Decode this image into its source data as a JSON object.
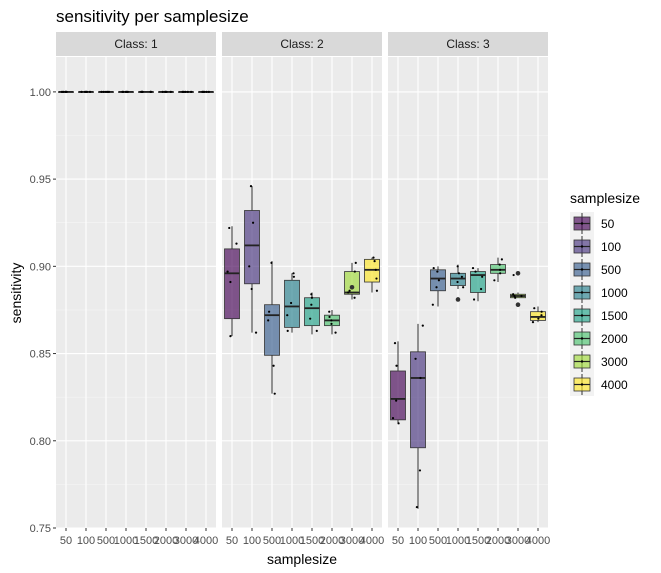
{
  "chart_data": {
    "type": "boxplot",
    "title": "sensitivity per samplesize",
    "xlabel": "samplesize",
    "ylabel": "sensitivity",
    "ylim": [
      0.75,
      1.02
    ],
    "yticks": [
      "0.75",
      "0.80",
      "0.85",
      "0.90",
      "0.95",
      "1.00"
    ],
    "categories": [
      "50",
      "100",
      "500",
      "1000",
      "1500",
      "2000",
      "3000",
      "4000"
    ],
    "facets": [
      "Class: 1",
      "Class: 2",
      "Class: 3"
    ],
    "legend": {
      "title": "samplesize",
      "position": "right",
      "entries": [
        "50",
        "100",
        "500",
        "1000",
        "1500",
        "2000",
        "3000",
        "4000"
      ]
    },
    "colors": [
      "#440154",
      "#46337E",
      "#365C8D",
      "#277F8E",
      "#1FA187",
      "#4AC16D",
      "#A0DA39",
      "#FDE725"
    ],
    "grid": true,
    "panels": [
      {
        "facet": "Class: 1",
        "boxes": [
          {
            "q1": 1.0,
            "med": 1.0,
            "q3": 1.0,
            "lo": 1.0,
            "hi": 1.0,
            "outliers": [],
            "points": [
              1.0,
              1.0,
              1.0,
              1.0,
              1.0
            ]
          },
          {
            "q1": 1.0,
            "med": 1.0,
            "q3": 1.0,
            "lo": 1.0,
            "hi": 1.0,
            "outliers": [],
            "points": [
              1.0,
              1.0,
              1.0,
              1.0,
              1.0
            ]
          },
          {
            "q1": 1.0,
            "med": 1.0,
            "q3": 1.0,
            "lo": 1.0,
            "hi": 1.0,
            "outliers": [],
            "points": [
              1.0,
              1.0,
              1.0,
              1.0,
              1.0
            ]
          },
          {
            "q1": 1.0,
            "med": 1.0,
            "q3": 1.0,
            "lo": 1.0,
            "hi": 1.0,
            "outliers": [],
            "points": [
              1.0,
              1.0,
              1.0,
              1.0,
              1.0
            ]
          },
          {
            "q1": 1.0,
            "med": 1.0,
            "q3": 1.0,
            "lo": 1.0,
            "hi": 1.0,
            "outliers": [],
            "points": [
              1.0,
              1.0,
              1.0,
              1.0,
              1.0
            ]
          },
          {
            "q1": 1.0,
            "med": 1.0,
            "q3": 1.0,
            "lo": 1.0,
            "hi": 1.0,
            "outliers": [],
            "points": [
              1.0,
              1.0,
              1.0,
              1.0,
              1.0
            ]
          },
          {
            "q1": 1.0,
            "med": 1.0,
            "q3": 1.0,
            "lo": 1.0,
            "hi": 1.0,
            "outliers": [],
            "points": [
              1.0,
              1.0,
              1.0,
              1.0,
              1.0
            ]
          },
          {
            "q1": 1.0,
            "med": 1.0,
            "q3": 1.0,
            "lo": 1.0,
            "hi": 1.0,
            "outliers": [],
            "points": [
              1.0,
              1.0,
              1.0,
              1.0,
              1.0
            ]
          }
        ]
      },
      {
        "facet": "Class: 2",
        "boxes": [
          {
            "q1": 0.87,
            "med": 0.896,
            "q3": 0.91,
            "lo": 0.86,
            "hi": 0.923,
            "outliers": [],
            "points": [
              0.86,
              0.891,
              0.897,
              0.913,
              0.922
            ]
          },
          {
            "q1": 0.89,
            "med": 0.912,
            "q3": 0.932,
            "lo": 0.862,
            "hi": 0.946,
            "outliers": [],
            "points": [
              0.862,
              0.887,
              0.9,
              0.925,
              0.946
            ]
          },
          {
            "q1": 0.849,
            "med": 0.872,
            "q3": 0.878,
            "lo": 0.827,
            "hi": 0.903,
            "outliers": [],
            "points": [
              0.827,
              0.843,
              0.869,
              0.874,
              0.902
            ]
          },
          {
            "q1": 0.865,
            "med": 0.877,
            "q3": 0.892,
            "lo": 0.862,
            "hi": 0.896,
            "outliers": [],
            "points": [
              0.863,
              0.872,
              0.879,
              0.894,
              0.896
            ]
          },
          {
            "q1": 0.866,
            "med": 0.876,
            "q3": 0.882,
            "lo": 0.861,
            "hi": 0.885,
            "outliers": [],
            "points": [
              0.863,
              0.87,
              0.878,
              0.882,
              0.884
            ]
          },
          {
            "q1": 0.866,
            "med": 0.869,
            "q3": 0.872,
            "lo": 0.861,
            "hi": 0.875,
            "outliers": [],
            "points": [
              0.862,
              0.867,
              0.869,
              0.871,
              0.874
            ]
          },
          {
            "q1": 0.884,
            "med": 0.885,
            "q3": 0.897,
            "lo": 0.881,
            "hi": 0.902,
            "outliers": [
              0.888
            ],
            "points": [
              0.882,
              0.885,
              0.886,
              0.897,
              0.902
            ]
          },
          {
            "q1": 0.891,
            "med": 0.898,
            "q3": 0.904,
            "lo": 0.885,
            "hi": 0.905,
            "outliers": [],
            "points": [
              0.886,
              0.893,
              0.898,
              0.903,
              0.905
            ]
          }
        ]
      },
      {
        "facet": "Class: 3",
        "boxes": [
          {
            "q1": 0.812,
            "med": 0.824,
            "q3": 0.84,
            "lo": 0.81,
            "hi": 0.857,
            "outliers": [],
            "points": [
              0.81,
              0.813,
              0.823,
              0.843,
              0.856
            ]
          },
          {
            "q1": 0.796,
            "med": 0.836,
            "q3": 0.851,
            "lo": 0.761,
            "hi": 0.867,
            "outliers": [],
            "points": [
              0.762,
              0.783,
              0.836,
              0.847,
              0.866
            ]
          },
          {
            "q1": 0.886,
            "med": 0.893,
            "q3": 0.898,
            "lo": 0.877,
            "hi": 0.9,
            "outliers": [],
            "points": [
              0.878,
              0.888,
              0.892,
              0.897,
              0.899
            ]
          },
          {
            "q1": 0.889,
            "med": 0.893,
            "q3": 0.896,
            "lo": 0.887,
            "hi": 0.901,
            "outliers": [
              0.881
            ],
            "points": [
              0.888,
              0.891,
              0.894,
              0.896,
              0.9
            ]
          },
          {
            "q1": 0.885,
            "med": 0.895,
            "q3": 0.897,
            "lo": 0.88,
            "hi": 0.899,
            "outliers": [],
            "points": [
              0.881,
              0.887,
              0.894,
              0.897,
              0.899
            ]
          },
          {
            "q1": 0.896,
            "med": 0.898,
            "q3": 0.901,
            "lo": 0.891,
            "hi": 0.905,
            "outliers": [],
            "points": [
              0.892,
              0.896,
              0.898,
              0.901,
              0.904
            ]
          },
          {
            "q1": 0.882,
            "med": 0.883,
            "q3": 0.884,
            "lo": 0.882,
            "hi": 0.885,
            "outliers": [
              0.896,
              0.878
            ],
            "points": [
              0.882,
              0.883,
              0.883,
              0.884,
              0.895
            ]
          },
          {
            "q1": 0.869,
            "med": 0.871,
            "q3": 0.874,
            "lo": 0.868,
            "hi": 0.877,
            "outliers": [],
            "points": [
              0.868,
              0.87,
              0.872,
              0.874,
              0.876
            ]
          }
        ]
      }
    ]
  }
}
